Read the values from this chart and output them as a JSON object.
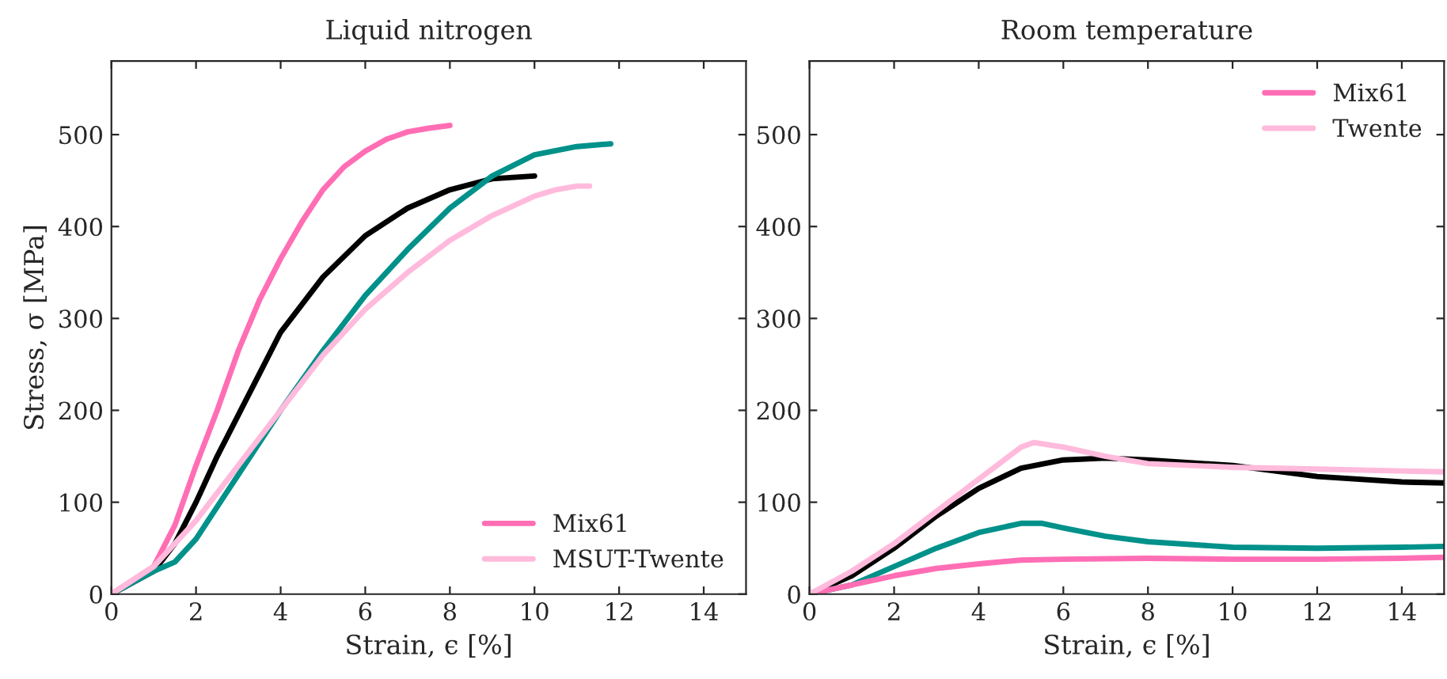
{
  "chart_data": [
    {
      "type": "line",
      "title": "Liquid nitrogen",
      "xlabel": "Strain, ϵ [%]",
      "ylabel": "Stress, σ [MPa]",
      "xlim": [
        0,
        15
      ],
      "ylim": [
        0,
        580
      ],
      "xticks": [
        0,
        2,
        4,
        6,
        8,
        10,
        12,
        14
      ],
      "yticks": [
        0,
        100,
        200,
        300,
        400,
        500
      ],
      "grid": false,
      "legend": "bottom right",
      "marker": "none",
      "line_style": "solid",
      "series": [
        {
          "color": "#000000",
          "x": [
            0,
            1,
            1.5,
            2,
            2.5,
            3,
            3.5,
            4,
            5,
            6,
            7,
            8,
            9,
            10
          ],
          "values": [
            0,
            25,
            55,
            100,
            150,
            195,
            240,
            285,
            345,
            390,
            420,
            440,
            452,
            455
          ]
        },
        {
          "color": "#00918a",
          "x": [
            0,
            1,
            1.5,
            2,
            2.5,
            3,
            4,
            5,
            6,
            7,
            8,
            9,
            10,
            11,
            11.8
          ],
          "values": [
            0,
            25,
            35,
            60,
            95,
            130,
            200,
            265,
            325,
            375,
            420,
            455,
            478,
            487,
            490
          ]
        },
        {
          "name": "Mix61",
          "color": "#ff6eb4",
          "x": [
            0,
            1,
            1.5,
            2,
            2.5,
            3,
            3.5,
            4,
            4.5,
            5,
            5.5,
            6,
            6.5,
            7,
            7.5,
            8
          ],
          "values": [
            0,
            30,
            75,
            140,
            200,
            265,
            320,
            365,
            405,
            440,
            465,
            482,
            495,
            503,
            507,
            510
          ]
        },
        {
          "name": "MSUT-Twente",
          "color": "#ffbadc",
          "x": [
            0,
            1,
            2,
            3,
            4,
            5,
            6,
            7,
            8,
            9,
            10,
            10.5,
            11,
            11.3
          ],
          "values": [
            0,
            30,
            80,
            140,
            200,
            260,
            310,
            350,
            385,
            412,
            433,
            440,
            444,
            444
          ]
        }
      ]
    },
    {
      "type": "line",
      "title": "Room temperature",
      "xlabel": "Strain, ϵ [%]",
      "xlim": [
        0,
        15
      ],
      "ylim": [
        0,
        580
      ],
      "xticks": [
        0,
        2,
        4,
        6,
        8,
        10,
        12,
        14
      ],
      "yticks": [
        0,
        100,
        200,
        300,
        400,
        500
      ],
      "grid": false,
      "legend": "top right",
      "marker": "none",
      "line_style": "solid",
      "series": [
        {
          "color": "#000000",
          "x": [
            0,
            1,
            2,
            3,
            4,
            5,
            6,
            7,
            8,
            10,
            12,
            14,
            15
          ],
          "values": [
            0,
            20,
            50,
            85,
            115,
            137,
            146,
            148,
            146,
            140,
            128,
            122,
            121
          ]
        },
        {
          "color": "#00918a",
          "x": [
            0,
            1,
            2,
            3,
            4,
            5,
            5.5,
            6,
            7,
            8,
            10,
            12,
            14,
            15
          ],
          "values": [
            0,
            10,
            30,
            50,
            67,
            77,
            77,
            72,
            63,
            57,
            51,
            50,
            51,
            52
          ]
        },
        {
          "name": "Mix61",
          "color": "#ff6eb4",
          "x": [
            0,
            1,
            2,
            3,
            4,
            5,
            6,
            8,
            10,
            12,
            14,
            15
          ],
          "values": [
            0,
            10,
            20,
            28,
            33,
            37,
            38,
            39,
            38,
            38,
            39,
            40
          ]
        },
        {
          "name": "Twente",
          "color": "#ffbadc",
          "x": [
            0,
            1,
            2,
            3,
            4,
            5,
            5.3,
            6,
            7,
            8,
            10,
            12,
            14,
            15
          ],
          "values": [
            0,
            25,
            55,
            90,
            125,
            160,
            165,
            160,
            150,
            142,
            138,
            136,
            134,
            133
          ]
        }
      ]
    }
  ]
}
